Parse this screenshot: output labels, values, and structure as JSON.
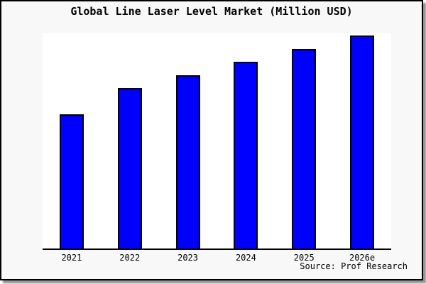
{
  "title": "Global Line Laser Level Market (Million USD)",
  "source": "Source: Prof Research",
  "colors": {
    "bar_fill": "#0000ff",
    "bar_border": "#000000",
    "card_background": "#f8f8f8",
    "plot_background": "#ffffff",
    "axis": "#000000",
    "text": "#000000",
    "shadow": "#949494"
  },
  "chart_data": {
    "type": "bar",
    "title": "Global Line Laser Level Market (Million USD)",
    "categories": [
      "2021",
      "2022",
      "2023",
      "2024",
      "2025",
      "2026e"
    ],
    "values": [
      62.9,
      75.2,
      81.5,
      87.7,
      93.7,
      100
    ],
    "value_note": "y-axis unlabeled in image; values are relative, normalized to 2026e = 100",
    "xlabel": "",
    "ylabel": "",
    "ylim": [
      0,
      101
    ],
    "grid": false,
    "legend": false,
    "spines": "bottom-only",
    "source": "Source: Prof Research"
  }
}
